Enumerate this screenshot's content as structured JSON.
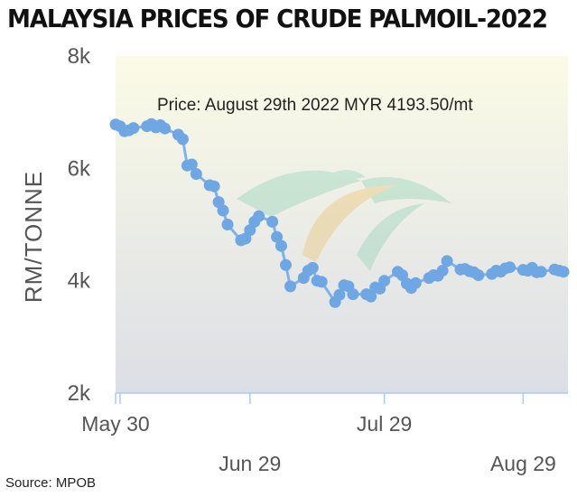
{
  "title": "MALAYSIA PRICES OF CRUDE PALMOIL-2022",
  "source": "Source: MPOB",
  "chart_data": {
    "type": "line",
    "title": "MALAYSIA PRICES OF CRUDE PALMOIL-2022",
    "ylabel": "RM/TONNE",
    "xlabel": "",
    "ylim": [
      2000,
      8000
    ],
    "yticks": [
      {
        "value": 2000,
        "label": "2k"
      },
      {
        "value": 4000,
        "label": "4k"
      },
      {
        "value": 6000,
        "label": "6k"
      },
      {
        "value": 8000,
        "label": "8k"
      }
    ],
    "xlim": [
      "2022-05-30",
      "2022-09-08"
    ],
    "xticks": [
      {
        "date": "2022-05-30",
        "label": "May 30",
        "row": 1
      },
      {
        "date": "2022-06-29",
        "label": "Jun 29",
        "row": 2
      },
      {
        "date": "2022-07-29",
        "label": "Jul 29",
        "row": 1
      },
      {
        "date": "2022-08-29",
        "label": "Aug 29",
        "row": 2
      }
    ],
    "annotation": "Price: August 29th 2022 MYR 4193.50/mt",
    "grid": false,
    "legend": "none",
    "colors": {
      "line": "#7eb2ea",
      "marker": "#6fa6e4",
      "bg_top": "#fbfbe6",
      "bg_bottom": "#dcdee6",
      "axis": "#aacbf0"
    },
    "series": [
      {
        "x": [
          "2022-05-30",
          "2022-05-31",
          "2022-06-01",
          "2022-06-02",
          "2022-06-03",
          "2022-06-06",
          "2022-06-07",
          "2022-06-08",
          "2022-06-09",
          "2022-06-10",
          "2022-06-13",
          "2022-06-14",
          "2022-06-15",
          "2022-06-16",
          "2022-06-17",
          "2022-06-20",
          "2022-06-21",
          "2022-06-22",
          "2022-06-23",
          "2022-06-24",
          "2022-06-27",
          "2022-06-28",
          "2022-06-29",
          "2022-06-30",
          "2022-07-01",
          "2022-07-04",
          "2022-07-05",
          "2022-07-06",
          "2022-07-07",
          "2022-07-08",
          "2022-07-11",
          "2022-07-12",
          "2022-07-13",
          "2022-07-14",
          "2022-07-15",
          "2022-07-18",
          "2022-07-19",
          "2022-07-20",
          "2022-07-21",
          "2022-07-22",
          "2022-07-25",
          "2022-07-26",
          "2022-07-27",
          "2022-07-28",
          "2022-07-29",
          "2022-08-01",
          "2022-08-02",
          "2022-08-03",
          "2022-08-04",
          "2022-08-05",
          "2022-08-08",
          "2022-08-09",
          "2022-08-10",
          "2022-08-11",
          "2022-08-12",
          "2022-08-15",
          "2022-08-16",
          "2022-08-17",
          "2022-08-18",
          "2022-08-19",
          "2022-08-22",
          "2022-08-23",
          "2022-08-24",
          "2022-08-25",
          "2022-08-26",
          "2022-08-29",
          "2022-08-30",
          "2022-08-31",
          "2022-09-01",
          "2022-09-02",
          "2022-09-05",
          "2022-09-06",
          "2022-09-07"
        ],
        "values": [
          6780,
          6750,
          6660,
          6680,
          6720,
          6750,
          6790,
          6730,
          6770,
          6710,
          6600,
          6520,
          6050,
          6070,
          5900,
          5700,
          5680,
          5400,
          5250,
          5000,
          4720,
          4750,
          4900,
          5050,
          5150,
          5050,
          4780,
          4620,
          4280,
          3900,
          4050,
          4180,
          4230,
          4000,
          3980,
          3620,
          3750,
          3920,
          3900,
          3760,
          3760,
          3720,
          3880,
          3860,
          4000,
          4160,
          4100,
          3950,
          3870,
          3960,
          4050,
          4100,
          4090,
          4180,
          4350,
          4200,
          4210,
          4170,
          4150,
          4100,
          4120,
          4180,
          4160,
          4220,
          4240,
          4193.5,
          4180,
          4230,
          4150,
          4160,
          4200,
          4180,
          4160
        ]
      }
    ]
  }
}
